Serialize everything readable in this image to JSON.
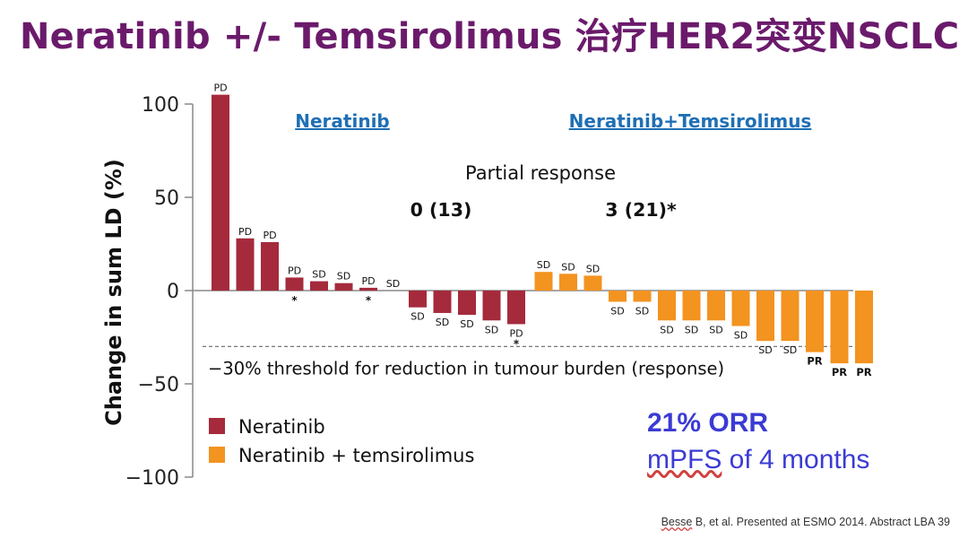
{
  "slide": {
    "title": "Neratinib +/- Temsirolimus 治疗HER2突变NSCLC",
    "orr": "21% ORR",
    "mpfs_abbr": "mPFS",
    "mpfs_rest": " of 4 months",
    "citation_abbr": "Besse",
    "citation_rest": " B, et al. Presented at ESMO 2014. Abstract LBA 39"
  },
  "chart_data": {
    "type": "bar",
    "ylabel": "Change in sum LD (%)",
    "ylim": [
      -100,
      100
    ],
    "yticks": [
      100,
      50,
      0,
      -50,
      -100
    ],
    "ytick_labels": [
      "100",
      "50",
      "0",
      "−50",
      "−100"
    ],
    "threshold": {
      "value": -30,
      "label": "−30% threshold for reduction in tumour burden (response)"
    },
    "group_headers": [
      "Neratinib",
      "Neratinib+Temsirolimus"
    ],
    "partial_response": {
      "label": "Partial response",
      "values": [
        "0 (13)",
        "3 (21)*"
      ]
    },
    "colors": {
      "Neratinib": "#a52a3c",
      "Neratinib + temsirolimus": "#f39320"
    },
    "series": [
      {
        "name": "Neratinib",
        "values": [
          105,
          28,
          26,
          7,
          5,
          4,
          1.5,
          0,
          -9,
          -12,
          -13,
          -16,
          -18
        ],
        "responses": [
          "PD",
          "PD",
          "PD",
          "PD",
          "SD",
          "SD",
          "PD",
          "SD",
          "SD",
          "SD",
          "SD",
          "SD",
          "PD"
        ],
        "marked": [
          false,
          false,
          false,
          true,
          false,
          false,
          true,
          false,
          false,
          false,
          false,
          false,
          true
        ]
      },
      {
        "name": "Neratinib + temsirolimus",
        "values": [
          10,
          9,
          8,
          -6,
          -6,
          -16,
          -16,
          -16,
          -19,
          -27,
          -27,
          -33,
          -39,
          -39
        ],
        "responses": [
          "SD",
          "SD",
          "SD",
          "SD",
          "SD",
          "SD",
          "SD",
          "SD",
          "SD",
          "SD",
          "SD",
          "PR",
          "PR",
          "PR"
        ],
        "marked": [
          false,
          false,
          false,
          false,
          false,
          false,
          false,
          false,
          false,
          false,
          false,
          false,
          false,
          false
        ]
      }
    ],
    "legend": [
      "Neratinib",
      "Neratinib + temsirolimus"
    ]
  }
}
